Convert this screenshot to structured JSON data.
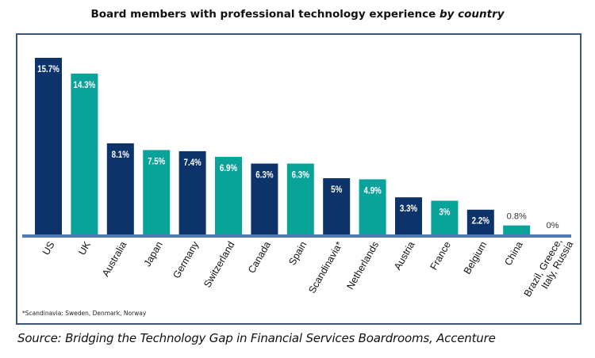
{
  "title": {
    "main": "Board members with professional technology experience",
    "emphasis": "by country"
  },
  "footnote": "*Scandinavia: Sweden, Denmark, Norway",
  "source": "Source: Bridging the Technology Gap in Financial Services Boardrooms, Accenture",
  "colors": {
    "navy": "#0d336b",
    "teal": "#0aa39a",
    "axis": "#4f7bb5",
    "frame": "#3d5678"
  },
  "chart_data": {
    "type": "bar",
    "title": "Board members with professional technology experience by country",
    "xlabel": "",
    "ylabel": "",
    "ylim": [
      0,
      15.7
    ],
    "grid": false,
    "legend": "none",
    "categories": [
      "US",
      "UK",
      "Australia",
      "Japan",
      "Germany",
      "Switzerland",
      "Canada",
      "Spain",
      "Scandinavia*",
      "Netherlands",
      "Austria",
      "France",
      "Belgium",
      "China",
      "Brazil, Greece, Italy, Russia"
    ],
    "category_lines": [
      [
        "US"
      ],
      [
        "UK"
      ],
      [
        "Australia"
      ],
      [
        "Japan"
      ],
      [
        "Germany"
      ],
      [
        "Switzerland"
      ],
      [
        "Canada"
      ],
      [
        "Spain"
      ],
      [
        "Scandinavia*"
      ],
      [
        "Netherlands"
      ],
      [
        "Austria"
      ],
      [
        "France"
      ],
      [
        "Belgium"
      ],
      [
        "China"
      ],
      [
        "Brazil, Greece,",
        "Italy, Russia"
      ]
    ],
    "values": [
      15.7,
      14.3,
      8.1,
      7.5,
      7.4,
      6.9,
      6.3,
      6.3,
      5,
      4.9,
      3.3,
      3,
      2.2,
      0.8,
      0
    ],
    "labels": [
      "15.7%",
      "14.3%",
      "8.1%",
      "7.5%",
      "7.4%",
      "6.9%",
      "6.3%",
      "6.3%",
      "5%",
      "4.9%",
      "3.3%",
      "3%",
      "2.2%",
      "0.8%",
      "0%"
    ],
    "bar_colors": [
      "navy",
      "teal",
      "navy",
      "teal",
      "navy",
      "teal",
      "navy",
      "teal",
      "navy",
      "teal",
      "navy",
      "teal",
      "navy",
      "teal",
      "navy"
    ]
  }
}
